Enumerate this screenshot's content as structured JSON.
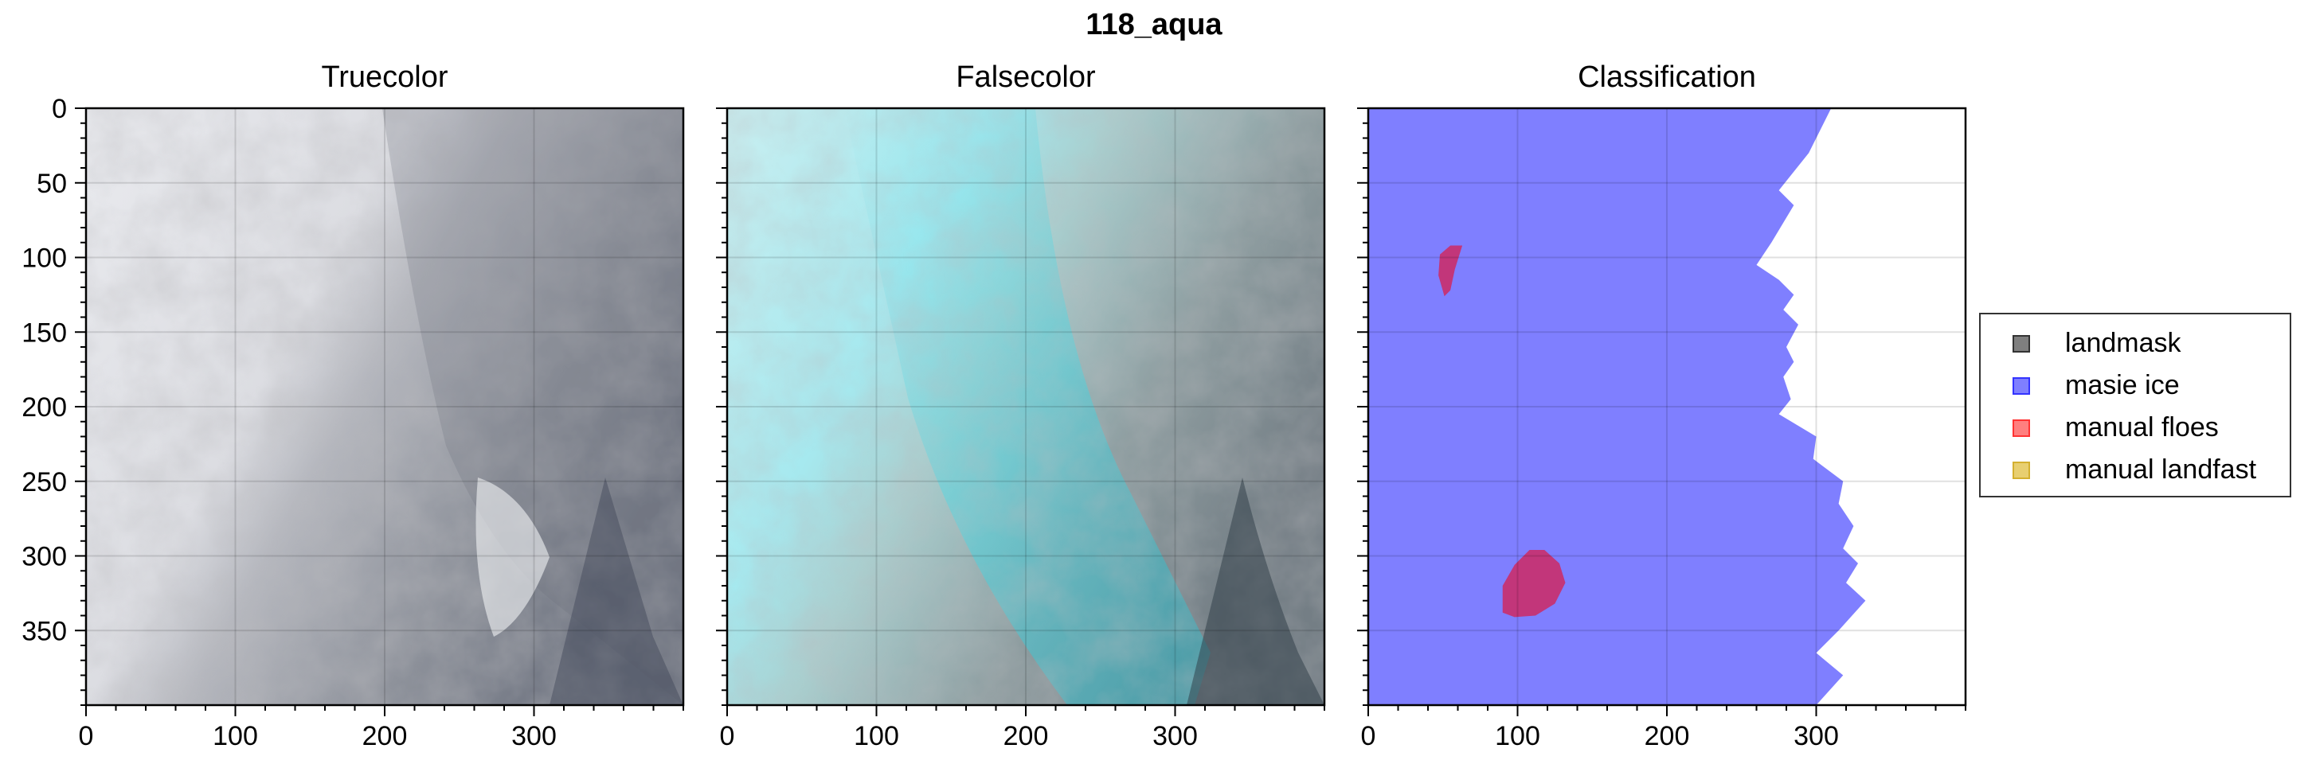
{
  "figure": {
    "title": "118_aqua"
  },
  "panels": [
    {
      "title": "Truecolor"
    },
    {
      "title": "Falsecolor"
    },
    {
      "title": "Classification"
    }
  ],
  "axes": {
    "x_ticks": [
      0,
      100,
      200,
      300
    ],
    "y_ticks": [
      0,
      50,
      100,
      150,
      200,
      250,
      300,
      350
    ],
    "xlim": [
      0,
      400
    ],
    "ylim": [
      400,
      0
    ],
    "grid": true
  },
  "legend": {
    "placement": "right",
    "items": [
      {
        "label": "landmask",
        "color": "#7f7f7f",
        "edge": "#333333"
      },
      {
        "label": "masie ice",
        "color": "#7f7fff",
        "edge": "#3333ff"
      },
      {
        "label": "manual floes",
        "color": "#ff7f7f",
        "edge": "#ff3333"
      },
      {
        "label": "manual landfast",
        "color": "#e8cf70",
        "edge": "#d4b030"
      }
    ]
  },
  "classification": {
    "masie_ice_color": "#7f7fff",
    "floe_color": "#c2367a",
    "masie_ice_boundary": [
      [
        310,
        0
      ],
      [
        295,
        30
      ],
      [
        275,
        55
      ],
      [
        285,
        65
      ],
      [
        270,
        90
      ],
      [
        260,
        105
      ],
      [
        275,
        115
      ],
      [
        285,
        125
      ],
      [
        278,
        135
      ],
      [
        288,
        145
      ],
      [
        280,
        160
      ],
      [
        285,
        170
      ],
      [
        278,
        180
      ],
      [
        283,
        195
      ],
      [
        275,
        205
      ],
      [
        300,
        220
      ],
      [
        298,
        235
      ],
      [
        318,
        250
      ],
      [
        315,
        265
      ],
      [
        325,
        280
      ],
      [
        318,
        295
      ],
      [
        328,
        305
      ],
      [
        320,
        318
      ],
      [
        333,
        330
      ],
      [
        315,
        350
      ],
      [
        300,
        365
      ],
      [
        318,
        380
      ],
      [
        300,
        400
      ]
    ],
    "floes": [
      [
        [
          55,
          92
        ],
        [
          63,
          92
        ],
        [
          58,
          108
        ],
        [
          55,
          122
        ],
        [
          51,
          126
        ],
        [
          47,
          112
        ],
        [
          48,
          98
        ]
      ],
      [
        [
          108,
          296
        ],
        [
          118,
          296
        ],
        [
          128,
          305
        ],
        [
          132,
          318
        ],
        [
          125,
          332
        ],
        [
          112,
          340
        ],
        [
          98,
          341
        ],
        [
          90,
          338
        ],
        [
          90,
          320
        ],
        [
          98,
          306
        ]
      ]
    ]
  }
}
